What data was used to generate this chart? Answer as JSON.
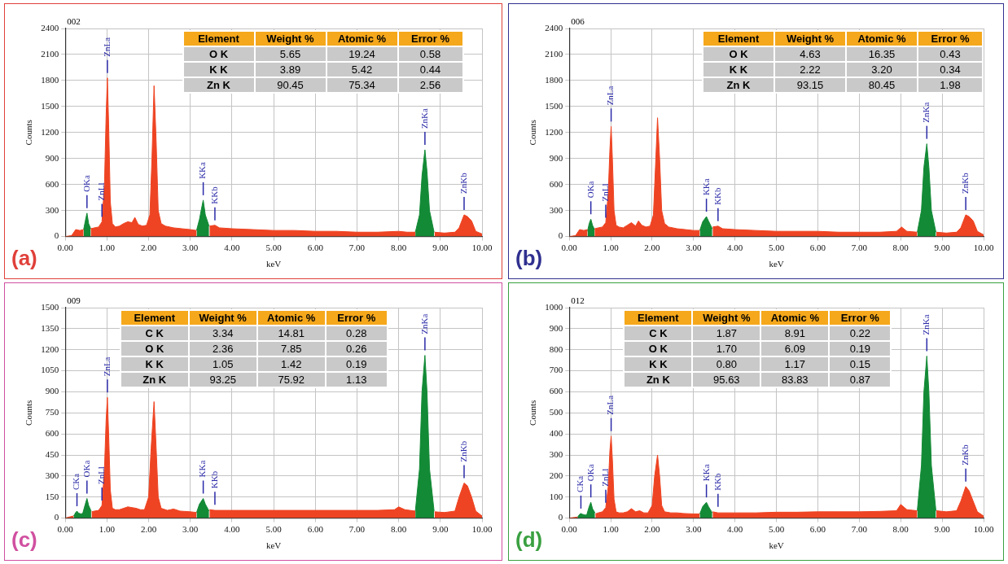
{
  "chart_data": [
    {
      "type": "area",
      "xlabel": "keV",
      "ylabel": "Counts",
      "grid": true,
      "legend": false,
      "marker": "none",
      "xlim": [
        0,
        10
      ],
      "ylim": [
        0,
        2400
      ],
      "xticks": [
        {
          "value": 0,
          "label": "0.00"
        },
        {
          "value": 1,
          "label": "1.00"
        },
        {
          "value": 2,
          "label": "2.00"
        },
        {
          "value": 3,
          "label": "3.00"
        },
        {
          "value": 4,
          "label": "4.00"
        },
        {
          "value": 5,
          "label": "5.00"
        },
        {
          "value": 6,
          "label": "6.00"
        },
        {
          "value": 7,
          "label": "7.00"
        },
        {
          "value": 8,
          "label": "8.00"
        },
        {
          "value": 9,
          "label": "9.00"
        },
        {
          "value": 10,
          "label": "10.00"
        }
      ],
      "yticks": [
        0,
        300,
        600,
        900,
        1200,
        1500,
        1800,
        2100,
        2400
      ],
      "series": [
        {
          "color": "#ee4423",
          "x": [
            0,
            0.15,
            0.25,
            0.35,
            0.44,
            0.45,
            0.6,
            0.61,
            0.7,
            0.8,
            0.88,
            0.94,
            0.98,
            1.01,
            1.04,
            1.08,
            1.13,
            1.2,
            1.3,
            1.4,
            1.5,
            1.6,
            1.67,
            1.75,
            1.85,
            1.95,
            2.03,
            2.08,
            2.13,
            2.18,
            2.23,
            2.3,
            2.4,
            2.6,
            2.8,
            3.0,
            3.15,
            3.16,
            3.45,
            3.46,
            3.59,
            3.7,
            4.0,
            4.5,
            5.0,
            5.5,
            6.0,
            6.5,
            7.0,
            7.5,
            8.0,
            8.2,
            8.4,
            8.41,
            8.85,
            8.86,
            9.1,
            9.35,
            9.45,
            9.57,
            9.65,
            9.75,
            9.85,
            10
          ],
          "values": [
            0,
            10,
            80,
            70,
            80,
            null,
            null,
            90,
            100,
            110,
            170,
            600,
            1400,
            1830,
            1300,
            400,
            150,
            110,
            120,
            150,
            170,
            160,
            220,
            140,
            120,
            130,
            250,
            900,
            1740,
            1100,
            300,
            150,
            120,
            100,
            90,
            80,
            70,
            null,
            null,
            120,
            130,
            100,
            90,
            80,
            70,
            70,
            60,
            60,
            50,
            50,
            60,
            50,
            50,
            null,
            null,
            50,
            40,
            50,
            100,
            250,
            230,
            180,
            60,
            30
          ]
        },
        {
          "color": "#138a36",
          "x": [
            0.44,
            0.48,
            0.52,
            0.56,
            0.61,
            2,
            3.15,
            3.22,
            3.28,
            3.31,
            3.36,
            3.45,
            6,
            8.4,
            8.5,
            8.56,
            8.63,
            8.68,
            8.74,
            8.85
          ],
          "values": [
            80,
            180,
            270,
            150,
            90,
            null,
            70,
            200,
            350,
            420,
            250,
            120,
            null,
            50,
            250,
            700,
            1000,
            750,
            300,
            50
          ]
        }
      ],
      "annotations": [
        "002",
        "(a)",
        "Element",
        "Weight %",
        "Atomic %",
        "Error %",
        "O K",
        "5.65",
        "19.24",
        "0.58",
        "K K",
        "3.89",
        "5.42",
        "0.44",
        "Zn K",
        "90.45",
        "75.34",
        "2.56",
        {
          "text": "OKa",
          "x": 0.52,
          "y": 270
        },
        {
          "text": "ZnLl",
          "x": 0.88,
          "y": 170
        },
        {
          "text": "ZnLa",
          "x": 1.01,
          "y": 1830
        },
        {
          "text": "KKa",
          "x": 3.31,
          "y": 420
        },
        {
          "text": "KKb",
          "x": 3.59,
          "y": 130
        },
        {
          "text": "ZnKa",
          "x": 8.63,
          "y": 1000
        },
        {
          "text": "ZnKb",
          "x": 9.57,
          "y": 250
        }
      ]
    },
    {
      "type": "area",
      "xlabel": "keV",
      "ylabel": "Counts",
      "grid": true,
      "legend": false,
      "marker": "none",
      "xlim": [
        0,
        10
      ],
      "ylim": [
        0,
        2400
      ],
      "xticks": [
        {
          "value": 0,
          "label": "0.00"
        },
        {
          "value": 1,
          "label": "1.00"
        },
        {
          "value": 2,
          "label": "2.00"
        },
        {
          "value": 3,
          "label": "3.00"
        },
        {
          "value": 4,
          "label": "4.00"
        },
        {
          "value": 5,
          "label": "5.00"
        },
        {
          "value": 6,
          "label": "6.00"
        },
        {
          "value": 7,
          "label": "7.00"
        },
        {
          "value": 8,
          "label": "8.00"
        },
        {
          "value": 9,
          "label": "9.00"
        },
        {
          "value": 10,
          "label": "10.00"
        }
      ],
      "yticks": [
        0,
        300,
        600,
        900,
        1200,
        1500,
        1800,
        2100,
        2400
      ],
      "series": [
        {
          "color": "#ee4423",
          "x": [
            0,
            0.15,
            0.25,
            0.35,
            0.44,
            0.45,
            0.6,
            0.61,
            0.7,
            0.8,
            0.88,
            0.94,
            0.98,
            1.01,
            1.04,
            1.08,
            1.13,
            1.2,
            1.3,
            1.4,
            1.5,
            1.6,
            1.67,
            1.75,
            1.85,
            1.95,
            2.03,
            2.08,
            2.13,
            2.18,
            2.23,
            2.3,
            2.4,
            2.6,
            2.8,
            3.0,
            3.15,
            3.16,
            3.45,
            3.46,
            3.59,
            3.7,
            4.0,
            4.5,
            5.0,
            5.5,
            6.0,
            6.5,
            7.0,
            7.5,
            7.9,
            8.02,
            8.15,
            8.4,
            8.41,
            8.85,
            8.86,
            9.1,
            9.35,
            9.45,
            9.57,
            9.65,
            9.75,
            9.85,
            10
          ],
          "values": [
            0,
            10,
            80,
            70,
            80,
            null,
            null,
            90,
            100,
            110,
            160,
            500,
            1000,
            1270,
            900,
            300,
            130,
            110,
            100,
            130,
            160,
            120,
            180,
            130,
            110,
            120,
            250,
            800,
            1370,
            900,
            300,
            150,
            110,
            90,
            80,
            70,
            70,
            null,
            null,
            110,
            120,
            90,
            80,
            70,
            60,
            60,
            60,
            50,
            50,
            50,
            60,
            110,
            60,
            50,
            null,
            null,
            50,
            40,
            50,
            100,
            250,
            230,
            180,
            60,
            20
          ]
        },
        {
          "color": "#138a36",
          "x": [
            0.44,
            0.48,
            0.52,
            0.56,
            0.61,
            2,
            3.15,
            3.22,
            3.31,
            3.36,
            3.45,
            6,
            8.4,
            8.5,
            8.56,
            8.63,
            8.68,
            8.74,
            8.85
          ],
          "values": [
            60,
            150,
            200,
            130,
            80,
            null,
            70,
            170,
            230,
            180,
            90,
            null,
            50,
            300,
            800,
            1070,
            800,
            300,
            50
          ]
        }
      ],
      "annotations": [
        "006",
        "(b)",
        "Element",
        "Weight %",
        "Atomic %",
        "Error %",
        "O K",
        "4.63",
        "16.35",
        "0.43",
        "K K",
        "2.22",
        "3.20",
        "0.34",
        "Zn K",
        "93.15",
        "80.45",
        "1.98",
        {
          "text": "OKa",
          "x": 0.52,
          "y": 200
        },
        {
          "text": "ZnLl",
          "x": 0.88,
          "y": 160
        },
        {
          "text": "ZnLa",
          "x": 1.01,
          "y": 1270
        },
        {
          "text": "KKa",
          "x": 3.31,
          "y": 230
        },
        {
          "text": "KKb",
          "x": 3.59,
          "y": 120
        },
        {
          "text": "ZnKa",
          "x": 8.63,
          "y": 1070
        },
        {
          "text": "ZnKb",
          "x": 9.57,
          "y": 250
        }
      ]
    },
    {
      "type": "area",
      "xlabel": "keV",
      "ylabel": "Counts",
      "grid": true,
      "legend": false,
      "marker": "none",
      "xlim": [
        0,
        10
      ],
      "ylim": [
        0,
        1500
      ],
      "xticks": [
        {
          "value": 0,
          "label": "0.00"
        },
        {
          "value": 1,
          "label": "1.00"
        },
        {
          "value": 2,
          "label": "2.00"
        },
        {
          "value": 3,
          "label": "3.00"
        },
        {
          "value": 4,
          "label": "4.00"
        },
        {
          "value": 5,
          "label": "5.00"
        },
        {
          "value": 6,
          "label": "6.00"
        },
        {
          "value": 7,
          "label": "7.00"
        },
        {
          "value": 8,
          "label": "8.00"
        },
        {
          "value": 9,
          "label": "9.00"
        },
        {
          "value": 10,
          "label": "10.00"
        }
      ],
      "yticks": [
        0,
        150,
        300,
        450,
        600,
        750,
        900,
        1050,
        1200,
        1350,
        1500
      ],
      "series": [
        {
          "color": "#ee4423",
          "x": [
            0,
            0.12,
            0.2,
            0.21,
            0.62,
            0.63,
            0.7,
            0.8,
            0.88,
            0.94,
            0.98,
            1.01,
            1.04,
            1.08,
            1.13,
            1.2,
            1.3,
            1.4,
            1.5,
            1.6,
            1.7,
            1.8,
            1.9,
            2.0,
            2.06,
            2.13,
            2.18,
            2.23,
            2.3,
            2.45,
            2.6,
            2.75,
            3.0,
            3.15,
            3.16,
            3.45,
            3.46,
            3.59,
            4.0,
            4.5,
            5.0,
            5.5,
            6.0,
            6.5,
            7.0,
            7.5,
            7.9,
            8.0,
            8.15,
            8.4,
            8.41,
            8.85,
            8.86,
            9.1,
            9.35,
            9.45,
            9.57,
            9.65,
            9.75,
            9.85,
            10
          ],
          "values": [
            0,
            10,
            15,
            null,
            null,
            45,
            50,
            55,
            90,
            350,
            700,
            860,
            600,
            200,
            70,
            60,
            60,
            70,
            80,
            75,
            70,
            60,
            60,
            150,
            500,
            830,
            500,
            150,
            70,
            55,
            65,
            50,
            45,
            40,
            null,
            null,
            60,
            55,
            55,
            55,
            55,
            55,
            55,
            55,
            55,
            55,
            60,
            80,
            60,
            50,
            null,
            null,
            45,
            40,
            50,
            150,
            250,
            230,
            150,
            50,
            15
          ]
        },
        {
          "color": "#138a36",
          "x": [
            0.2,
            0.25,
            0.28,
            0.32,
            0.38,
            0.42,
            0.48,
            0.52,
            0.56,
            0.62,
            2,
            3.15,
            3.22,
            3.31,
            3.36,
            3.45,
            6,
            8.4,
            8.5,
            8.56,
            8.63,
            8.68,
            8.74,
            8.85
          ],
          "values": [
            15,
            40,
            50,
            35,
            30,
            35,
            100,
            140,
            90,
            50,
            null,
            40,
            100,
            140,
            100,
            50,
            null,
            50,
            350,
            900,
            1160,
            900,
            350,
            50
          ]
        }
      ],
      "annotations": [
        "009",
        "(c)",
        "Element",
        "Weight %",
        "Atomic %",
        "Error %",
        "C K",
        "3.34",
        "14.81",
        "0.28",
        "O K",
        "2.36",
        "7.85",
        "0.26",
        "K K",
        "1.05",
        "1.42",
        "0.19",
        "Zn K",
        "93.25",
        "75.92",
        "1.13",
        {
          "text": "CKa",
          "x": 0.28,
          "y": 50
        },
        {
          "text": "OKa",
          "x": 0.52,
          "y": 140
        },
        {
          "text": "ZnLl",
          "x": 0.88,
          "y": 90
        },
        {
          "text": "ZnLa",
          "x": 1.01,
          "y": 860
        },
        {
          "text": "KKa",
          "x": 3.31,
          "y": 140
        },
        {
          "text": "KKb",
          "x": 3.59,
          "y": 60
        },
        {
          "text": "ZnKa",
          "x": 8.63,
          "y": 1160
        },
        {
          "text": "ZnKb",
          "x": 9.57,
          "y": 250
        }
      ]
    },
    {
      "type": "area",
      "xlabel": "keV",
      "ylabel": "Counts",
      "grid": true,
      "legend": false,
      "marker": "none",
      "xlim": [
        0,
        10
      ],
      "ylim": [
        0,
        1000
      ],
      "xticks": [
        {
          "value": 0,
          "label": "0.00"
        },
        {
          "value": 1,
          "label": "1.00"
        },
        {
          "value": 2,
          "label": "2.00"
        },
        {
          "value": 3,
          "label": "3.00"
        },
        {
          "value": 4,
          "label": "4.00"
        },
        {
          "value": 5,
          "label": "5.00"
        },
        {
          "value": 6,
          "label": "6.00"
        },
        {
          "value": 7,
          "label": "7.00"
        },
        {
          "value": 8,
          "label": "8.00"
        },
        {
          "value": 9,
          "label": "9.00"
        },
        {
          "value": 10,
          "label": "10.00"
        }
      ],
      "yticks": [
        0,
        100,
        200,
        300,
        400,
        500,
        600,
        700,
        800,
        900,
        1000
      ],
      "series": [
        {
          "color": "#ee4423",
          "x": [
            0,
            0.12,
            0.2,
            0.21,
            0.62,
            0.63,
            0.7,
            0.8,
            0.88,
            0.94,
            0.98,
            1.01,
            1.04,
            1.08,
            1.13,
            1.2,
            1.3,
            1.4,
            1.5,
            1.6,
            1.7,
            1.8,
            1.9,
            2.0,
            2.06,
            2.13,
            2.18,
            2.23,
            2.3,
            2.45,
            2.6,
            2.75,
            3.0,
            3.15,
            3.16,
            3.45,
            3.46,
            3.59,
            4.0,
            4.5,
            5.0,
            5.5,
            6.0,
            6.5,
            7.0,
            7.5,
            7.9,
            8.0,
            8.15,
            8.4,
            8.41,
            8.85,
            8.86,
            9.1,
            9.35,
            9.45,
            9.57,
            9.65,
            9.75,
            9.85,
            10
          ],
          "values": [
            0,
            3,
            5,
            null,
            null,
            20,
            25,
            30,
            50,
            150,
            320,
            390,
            280,
            90,
            30,
            25,
            25,
            30,
            45,
            30,
            35,
            25,
            25,
            60,
            200,
            300,
            200,
            60,
            30,
            25,
            25,
            22,
            20,
            20,
            null,
            null,
            30,
            25,
            25,
            25,
            28,
            28,
            30,
            30,
            30,
            32,
            35,
            65,
            40,
            35,
            null,
            null,
            35,
            30,
            35,
            80,
            150,
            130,
            80,
            30,
            10
          ]
        },
        {
          "color": "#138a36",
          "x": [
            0.2,
            0.25,
            0.28,
            0.32,
            0.38,
            0.42,
            0.48,
            0.52,
            0.56,
            0.62,
            2,
            3.15,
            3.22,
            3.31,
            3.36,
            3.45,
            6,
            8.4,
            8.5,
            8.56,
            8.63,
            8.68,
            8.74,
            8.85
          ],
          "values": [
            5,
            18,
            22,
            18,
            15,
            15,
            55,
            75,
            45,
            25,
            null,
            20,
            55,
            75,
            55,
            25,
            null,
            35,
            250,
            600,
            770,
            600,
            250,
            35
          ]
        }
      ],
      "annotations": [
        "012",
        "(d)",
        "Element",
        "Weight %",
        "Atomic %",
        "Error %",
        "C K",
        "1.87",
        "8.91",
        "0.22",
        "O K",
        "1.70",
        "6.09",
        "0.19",
        "K K",
        "0.80",
        "1.17",
        "0.15",
        "Zn K",
        "95.63",
        "83.83",
        "0.87",
        {
          "text": "CKa",
          "x": 0.28,
          "y": 22
        },
        {
          "text": "OKa",
          "x": 0.52,
          "y": 75
        },
        {
          "text": "ZnLl",
          "x": 0.88,
          "y": 50
        },
        {
          "text": "ZnLa",
          "x": 1.01,
          "y": 390
        },
        {
          "text": "KKa",
          "x": 3.31,
          "y": 75
        },
        {
          "text": "KKb",
          "x": 3.59,
          "y": 30
        },
        {
          "text": "ZnKa",
          "x": 8.63,
          "y": 770
        },
        {
          "text": "ZnKb",
          "x": 9.57,
          "y": 150
        }
      ]
    }
  ]
}
